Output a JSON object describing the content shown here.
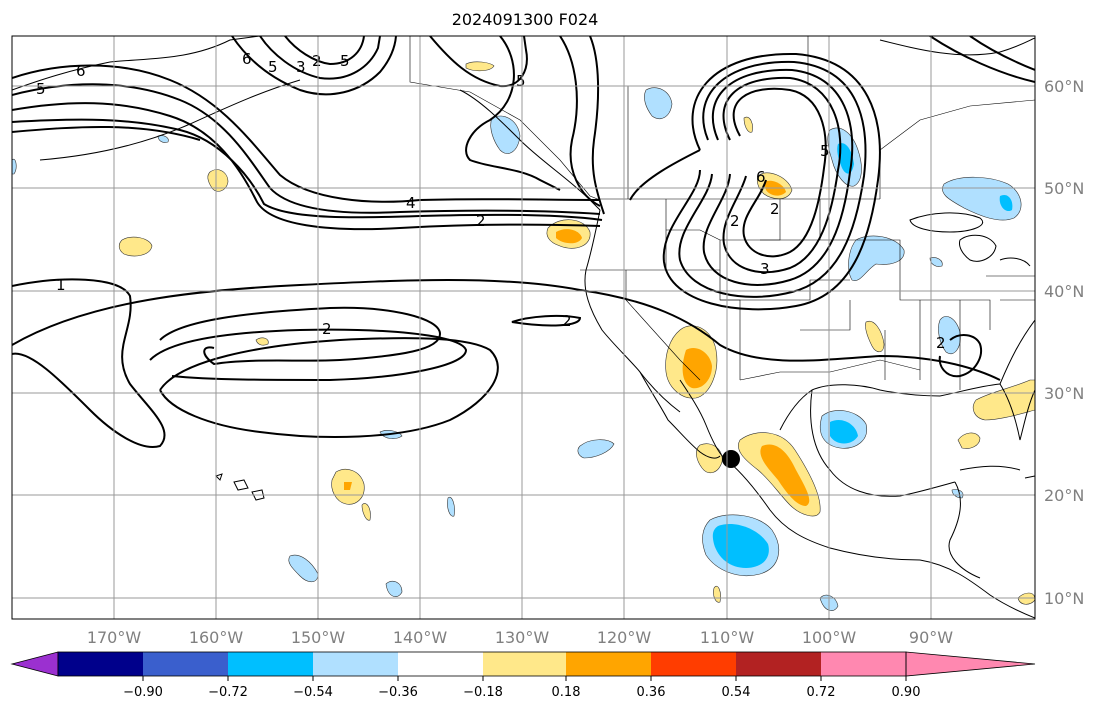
{
  "title": "2024091300 F024",
  "lat_labels": [
    "60°N",
    "50°N",
    "40°N",
    "30°N",
    "20°N",
    "10°N"
  ],
  "lon_labels": [
    "170°W",
    "160°W",
    "150°W",
    "140°W",
    "130°W",
    "120°W",
    "110°W",
    "100°W",
    "90°W"
  ],
  "colorbar": {
    "ticks": [
      "−0.90",
      "−0.72",
      "−0.54",
      "−0.36",
      "−0.18",
      "0.18",
      "0.36",
      "0.54",
      "0.72",
      "0.90"
    ],
    "colors": [
      "#9b30d0",
      "#00008b",
      "#3a5fcd",
      "#00bfff",
      "#b0e0ff",
      "#ffffff",
      "#ffe88a",
      "#ffa500",
      "#ff3d00",
      "#b22222",
      "#ff88b0"
    ]
  },
  "contour_labels": [
    "6",
    "5",
    "6",
    "5",
    "3",
    "2",
    "5",
    "5",
    "4",
    "2",
    "1",
    "2",
    "2",
    "2",
    "6",
    "2",
    "3",
    "5",
    "2"
  ],
  "marker": "storm-center-dot"
}
